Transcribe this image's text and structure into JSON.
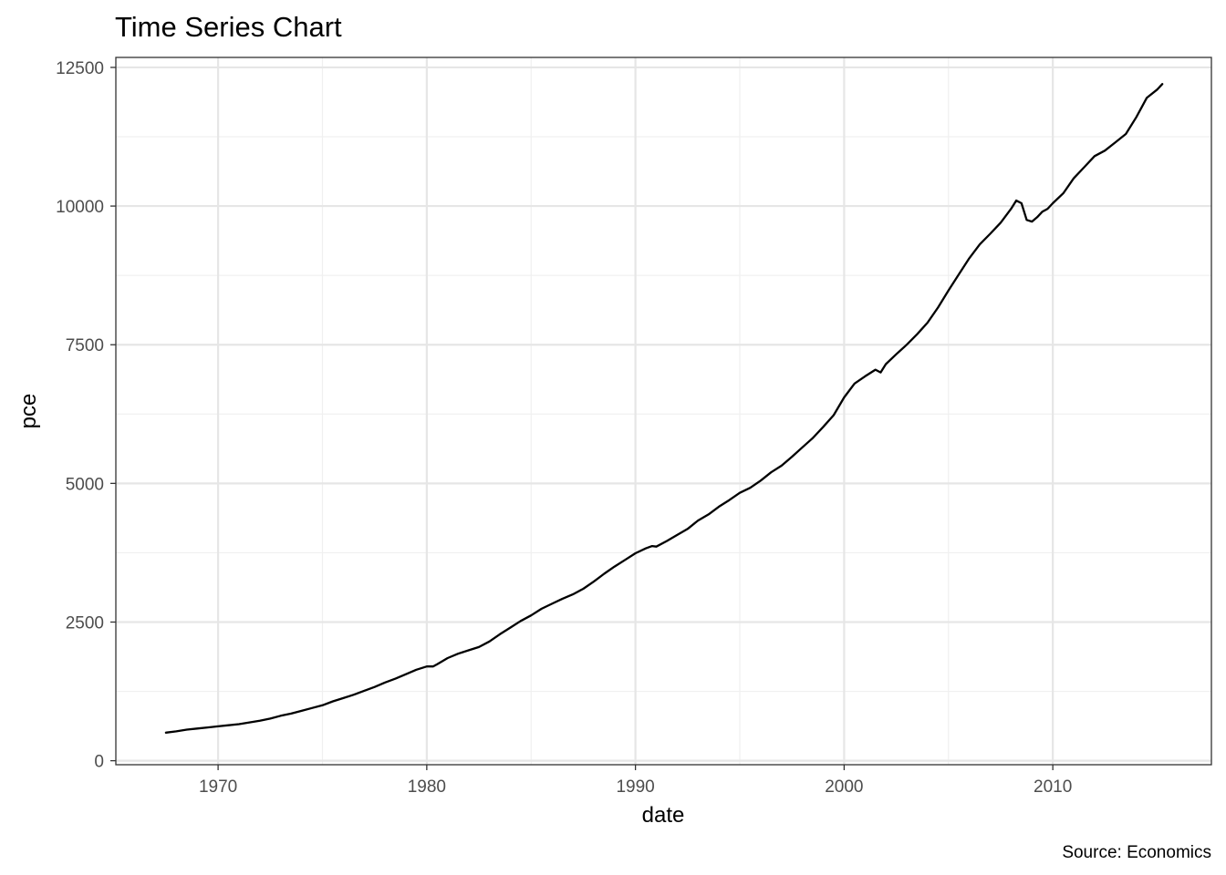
{
  "chart_data": {
    "type": "line",
    "title": "Time Series Chart",
    "caption": "Source: Economics",
    "xlabel": "date",
    "ylabel": "pce",
    "x_ticks": [
      "1970",
      "1980",
      "1990",
      "2000",
      "2010"
    ],
    "y_ticks": [
      "0",
      "2500",
      "5000",
      "7500",
      "10000",
      "12500"
    ],
    "x_tick_values": [
      1970,
      1980,
      1990,
      2000,
      2010
    ],
    "y_tick_values": [
      0,
      2500,
      5000,
      7500,
      10000,
      12500
    ],
    "xlim": [
      1965.1,
      2017.6
    ],
    "ylim": [
      -72,
      12680
    ],
    "grid": true,
    "theme": "bw",
    "line_color": "#000000",
    "series": [
      {
        "x": [
          1967.5,
          1968.0,
          1968.5,
          1969.0,
          1969.5,
          1970.0,
          1970.5,
          1971.0,
          1971.5,
          1972.0,
          1972.5,
          1973.0,
          1973.5,
          1974.0,
          1974.5,
          1975.0,
          1975.5,
          1976.0,
          1976.5,
          1977.0,
          1977.5,
          1978.0,
          1978.5,
          1979.0,
          1979.5,
          1980.0,
          1980.3,
          1980.5,
          1981.0,
          1981.5,
          1982.0,
          1982.5,
          1983.0,
          1983.5,
          1984.0,
          1984.5,
          1985.0,
          1985.5,
          1986.0,
          1986.5,
          1987.0,
          1987.5,
          1988.0,
          1988.5,
          1989.0,
          1989.5,
          1990.0,
          1990.5,
          1990.8,
          1991.0,
          1991.5,
          1992.0,
          1992.5,
          1993.0,
          1993.5,
          1994.0,
          1994.5,
          1995.0,
          1995.5,
          1996.0,
          1996.5,
          1997.0,
          1997.5,
          1998.0,
          1998.5,
          1999.0,
          1999.5,
          2000.0,
          2000.5,
          2001.0,
          2001.5,
          2001.75,
          2002.0,
          2002.5,
          2003.0,
          2003.5,
          2004.0,
          2004.5,
          2005.0,
          2005.5,
          2006.0,
          2006.5,
          2007.0,
          2007.5,
          2008.0,
          2008.25,
          2008.5,
          2008.75,
          2009.0,
          2009.25,
          2009.5,
          2009.75,
          2010.0,
          2010.5,
          2011.0,
          2011.5,
          2012.0,
          2012.5,
          2013.0,
          2013.5,
          2014.0,
          2014.5,
          2015.0,
          2015.25
        ],
        "values": [
          507,
          530,
          560,
          580,
          600,
          620,
          640,
          660,
          690,
          720,
          760,
          810,
          850,
          900,
          950,
          1000,
          1070,
          1130,
          1190,
          1260,
          1330,
          1410,
          1480,
          1560,
          1640,
          1700,
          1700,
          1740,
          1850,
          1930,
          1990,
          2050,
          2150,
          2280,
          2400,
          2520,
          2620,
          2740,
          2830,
          2920,
          3000,
          3100,
          3230,
          3370,
          3500,
          3620,
          3740,
          3830,
          3870,
          3860,
          3960,
          4070,
          4180,
          4330,
          4440,
          4580,
          4700,
          4830,
          4920,
          5050,
          5200,
          5320,
          5480,
          5650,
          5820,
          6020,
          6230,
          6550,
          6800,
          6930,
          7050,
          7000,
          7150,
          7330,
          7500,
          7690,
          7900,
          8170,
          8480,
          8770,
          9060,
          9310,
          9500,
          9700,
          9950,
          10100,
          10050,
          9750,
          9720,
          9800,
          9900,
          9950,
          10050,
          10230,
          10500,
          10700,
          10900,
          11000,
          11150,
          11300,
          11600,
          11950,
          12100,
          12200
        ]
      }
    ]
  }
}
